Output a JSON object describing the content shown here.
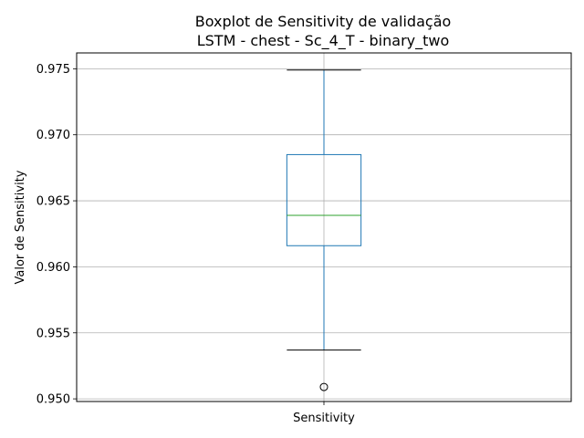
{
  "chart_data": {
    "type": "box",
    "title": "Boxplot de Sensitivity de validação",
    "subtitle": "LSTM - chest - Sc_4_T - binary_two",
    "xlabel": "",
    "ylabel": "Valor de Sensitivity",
    "categories": [
      "Sensitivity"
    ],
    "ylim": [
      0.9498,
      0.9762
    ],
    "yticks": [
      0.95,
      0.955,
      0.96,
      0.965,
      0.97,
      0.975
    ],
    "ytick_labels": [
      "0.950",
      "0.955",
      "0.960",
      "0.965",
      "0.970",
      "0.975"
    ],
    "grid": true,
    "series": [
      {
        "category": "Sensitivity",
        "whisker_low": 0.9537,
        "q1": 0.9616,
        "median": 0.9639,
        "q3": 0.9685,
        "whisker_high": 0.9749,
        "outliers": [
          0.9509
        ]
      }
    ],
    "colors": {
      "box": "#1f77b4",
      "median": "#2ca02c",
      "whisker": "#1f77b4",
      "cap": "#000000",
      "outlier": "#000000",
      "grid": "#b0b0b0"
    }
  }
}
